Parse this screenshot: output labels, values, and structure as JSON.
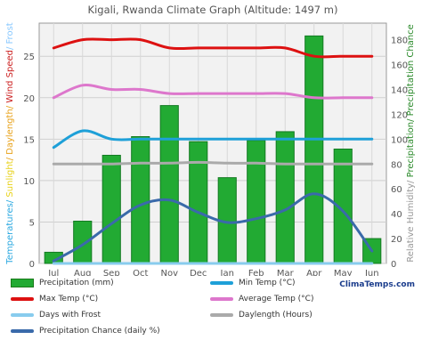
{
  "chart_data": {
    "type": "bar",
    "title": "Kigali, Rwanda Climate Graph (Altitude: 1497 m)",
    "ylabel_left": [
      {
        "text": "Temperatures",
        "color": "#2aa8e0"
      },
      {
        "text": "/ ",
        "color": "#2aa8e0"
      },
      {
        "text": "Sunlight",
        "color": "#e8d21a"
      },
      {
        "text": "/ Daylength/ ",
        "color": "#e8a21a"
      },
      {
        "text": "Wind Speed",
        "color": "#cc2222"
      },
      {
        "text": "/ Frost",
        "color": "#88c8ff"
      }
    ],
    "ylabel_right": [
      {
        "text": "Relative Humidity",
        "color": "#999999"
      },
      {
        "text": "/ ",
        "color": "#999999"
      },
      {
        "text": "Precipitation",
        "color": "#2a8a2a"
      },
      {
        "text": "/ Precipitation Chance",
        "color": "#2a8a2a"
      }
    ],
    "categories": [
      "Jul",
      "Aug",
      "Sep",
      "Oct",
      "Nov",
      "Dec",
      "Jan",
      "Feb",
      "Mar",
      "Apr",
      "May",
      "Jun"
    ],
    "y_left_ticks": [
      0,
      5,
      10,
      15,
      20,
      25
    ],
    "y_left_lim": [
      0,
      29
    ],
    "y_right_ticks": [
      0,
      20,
      40,
      60,
      80,
      100,
      120,
      140,
      160,
      180
    ],
    "y_right_lim": [
      0,
      193.3
    ],
    "series": [
      {
        "name": "Precipitation (mm)",
        "kind": "bar",
        "axis": "right",
        "color": "#22aa33",
        "values": [
          9,
          34,
          87,
          102,
          127,
          98,
          69,
          99,
          106,
          183,
          92,
          20
        ]
      },
      {
        "name": "Min Temp (°C)",
        "kind": "line",
        "axis": "left",
        "color": "#1ea0d8",
        "values": [
          14,
          16,
          15,
          15,
          15,
          15,
          15,
          15,
          15,
          15,
          15,
          15
        ]
      },
      {
        "name": "Max Temp (°C)",
        "kind": "line",
        "axis": "left",
        "color": "#dd1111",
        "values": [
          26,
          27,
          27,
          27,
          26,
          26,
          26,
          26,
          26,
          25,
          25,
          25
        ]
      },
      {
        "name": "Average Temp (°C)",
        "kind": "line",
        "axis": "left",
        "color": "#dd77cc",
        "values": [
          20,
          21.5,
          21,
          21,
          20.5,
          20.5,
          20.5,
          20.5,
          20.5,
          20,
          20,
          20
        ]
      },
      {
        "name": "Daylength (Hours)",
        "kind": "line",
        "axis": "left",
        "color": "#aaaaaa",
        "values": [
          12,
          12,
          12,
          12.1,
          12.1,
          12.2,
          12.1,
          12.1,
          12,
          12,
          12,
          12
        ]
      },
      {
        "name": "Days with Frost",
        "kind": "line",
        "axis": "left",
        "color": "#88ccee",
        "values": [
          0,
          0,
          0,
          0,
          0,
          0,
          0,
          0,
          0,
          0,
          0,
          0
        ]
      },
      {
        "name": "Precipitation Chance (daily %)",
        "kind": "line",
        "axis": "right",
        "color": "#3a6aaa",
        "values": [
          2,
          15,
          32,
          47,
          51,
          41,
          33,
          36,
          43,
          56,
          42,
          10
        ]
      }
    ],
    "grid": true
  },
  "legend": [
    {
      "label": "Precipitation (mm)",
      "type": "bar",
      "color": "#22aa33"
    },
    {
      "label": "Min Temp (°C)",
      "type": "line",
      "color": "#1ea0d8"
    },
    {
      "label": "Max Temp (°C)",
      "type": "line",
      "color": "#dd1111"
    },
    {
      "label": "Average Temp (°C)",
      "type": "line",
      "color": "#dd77cc"
    },
    {
      "label": "Days with Frost",
      "type": "line",
      "color": "#88ccee"
    },
    {
      "label": "Daylength (Hours)",
      "type": "line",
      "color": "#aaaaaa"
    },
    {
      "label": "Precipitation Chance (daily %)",
      "type": "line",
      "color": "#3a6aaa"
    }
  ],
  "brand": "ClimaTemps.com"
}
